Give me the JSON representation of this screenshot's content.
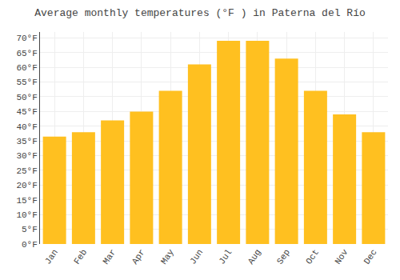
{
  "chart_data": {
    "type": "bar",
    "title": "Average monthly temperatures (°F ) in Paterna del Río",
    "categories": [
      "Jan",
      "Feb",
      "Mar",
      "Apr",
      "May",
      "Jun",
      "Jul",
      "Aug",
      "Sep",
      "Oct",
      "Nov",
      "Dec"
    ],
    "values": [
      36.5,
      38.0,
      42.0,
      45.0,
      52.0,
      61.0,
      69.0,
      69.0,
      63.0,
      52.0,
      44.0,
      38.0
    ],
    "color": "#FFC020",
    "ylim": [
      0,
      72
    ],
    "yticks": [
      {
        "value": 0,
        "label": "0°F"
      },
      {
        "value": 5,
        "label": "5°F"
      },
      {
        "value": 10,
        "label": "10°F"
      },
      {
        "value": 15,
        "label": "15°F"
      },
      {
        "value": 20,
        "label": "20°F"
      },
      {
        "value": 25,
        "label": "25°F"
      },
      {
        "value": 30,
        "label": "30°F"
      },
      {
        "value": 35,
        "label": "35°F"
      },
      {
        "value": 40,
        "label": "40°F"
      },
      {
        "value": 45,
        "label": "45°F"
      },
      {
        "value": 50,
        "label": "50°F"
      },
      {
        "value": 55,
        "label": "55°F"
      },
      {
        "value": 60,
        "label": "60°F"
      },
      {
        "value": 65,
        "label": "65°F"
      },
      {
        "value": 70,
        "label": "70°F"
      }
    ],
    "grid": true
  }
}
